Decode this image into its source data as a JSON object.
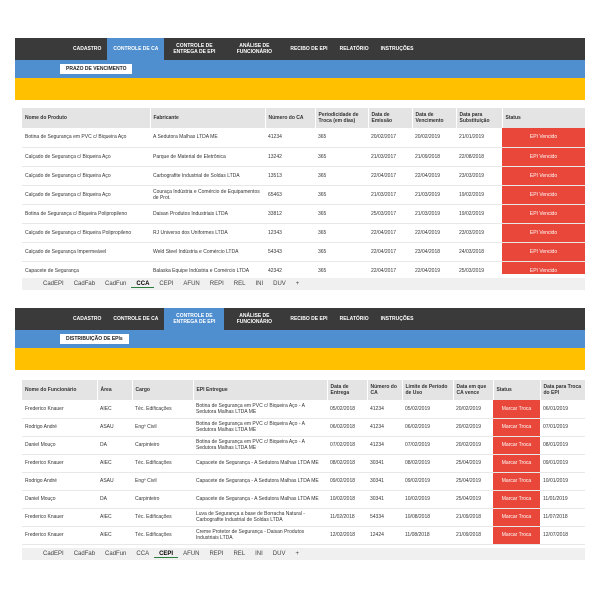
{
  "panels": [
    {
      "nav": [
        "CADASTRO",
        "CONTROLE DE CA",
        "CONTROLE DE ENTREGA DE EPI",
        "ANÁLISE DE FUNCIONÁRIO",
        "RECIBO DE EPI",
        "RELATÓRIO",
        "INSTRUÇÕES"
      ],
      "active_nav": 1,
      "button": "PRAZO DE VENCIMENTO",
      "table": {
        "headers": [
          "Nome do Produto",
          "Fabricante",
          "Número do CA",
          "Periodicidade de Troca (em dias)",
          "Data de Emissão",
          "Data de Vencimento",
          "Data para Substituição",
          "Status"
        ],
        "rows": [
          [
            "Botina de Segurança em PVC c/ Biqueira Aço",
            "A Sedutora Malhas LTDA ME",
            "41234",
            "365",
            "20/02/2017",
            "20/02/2019",
            "21/01/2019",
            "EPI Vencido"
          ],
          [
            "Calçado de Segurança c/ Biqueira Aço",
            "Parque de Material de Eletrônica",
            "13242",
            "365",
            "21/03/2017",
            "21/09/2018",
            "22/08/2018",
            "EPI Vencido"
          ],
          [
            "Calçado de Segurança c/ Biqueira Aço",
            "Carbografite Industrial de Soldas LTDA",
            "13513",
            "365",
            "22/04/2017",
            "22/04/2019",
            "23/03/2019",
            "EPI Vencido"
          ],
          [
            "Calçado de Segurança c/ Biqueira Aço",
            "Couraça Indústria e Comércio de Equipamentos de Prot.",
            "65463",
            "365",
            "21/03/2017",
            "21/03/2019",
            "19/02/2019",
            "EPI Vencido"
          ],
          [
            "Botina de Segurança c/ Biqueira Polipropileno",
            "Daisan Produtos Industriais LTDA",
            "33812",
            "365",
            "25/03/2017",
            "21/03/2019",
            "19/02/2019",
            "EPI Vencido"
          ],
          [
            "Calçado de Segurança c/ Biqueira Polipropileno",
            "RJ Universo dos Uniformes LTDA",
            "12343",
            "365",
            "22/04/2017",
            "22/04/2019",
            "23/03/2019",
            "EPI Vencido"
          ],
          [
            "Calçado de Segurança Impermeável",
            "Weld Steel Indústria e Comércio LTDA",
            "54343",
            "365",
            "22/04/2017",
            "23/04/2018",
            "24/03/2018",
            "EPI Vencido"
          ],
          [
            "Capacete de Segurança",
            "Balaska Equipe Indústria e Comércio LTDA",
            "42342",
            "365",
            "22/04/2017",
            "22/04/2019",
            "25/03/2019",
            "EPI Vencido"
          ]
        ]
      },
      "tabs": [
        "CadEPI",
        "CadFab",
        "CadFun",
        "CCA",
        "CEPI",
        "AFUN",
        "REPI",
        "REL",
        "INI",
        "DUV",
        "+"
      ],
      "active_tab": 3
    },
    {
      "nav": [
        "CADASTRO",
        "CONTROLE DE CA",
        "CONTROLE DE ENTREGA DE EPI",
        "ANÁLISE DE FUNCIONÁRIO",
        "RECIBO DE EPI",
        "RELATÓRIO",
        "INSTRUÇÕES"
      ],
      "active_nav": 2,
      "button": "DISTRIBUIÇÃO DE EPIs",
      "table": {
        "headers": [
          "Nome do Funcionário",
          "Área",
          "Cargo",
          "EPI Entregue",
          "Data de Entrega",
          "Número do CA",
          "Limite de Período de Uso",
          "Data em que CA vence",
          "Status",
          "Data para Troca do EPI"
        ],
        "rows": [
          [
            "Frederico Knauer",
            "AIEC",
            "Téc. Edificações",
            "Botina de Segurança em PVC c/ Biqueira Aço - A Sedutora Malhas LTDA ME",
            "05/02/2018",
            "41234",
            "05/02/2019",
            "20/02/2019",
            "Marcar Troca",
            "06/01/2019"
          ],
          [
            "Rodrigo André",
            "ASAU",
            "Engº Civil",
            "Botina de Segurança em PVC c/ Biqueira Aço - A Sedutora Malhas LTDA ME",
            "06/02/2018",
            "41234",
            "06/02/2019",
            "20/02/2019",
            "Marcar Troca",
            "07/01/2019"
          ],
          [
            "Daniel Mouço",
            "DA",
            "Carpinteiro",
            "Botina de Segurança em PVC c/ Biqueira Aço - A Sedutora Malhas LTDA ME",
            "07/02/2018",
            "41234",
            "07/02/2019",
            "20/02/2019",
            "Marcar Troca",
            "08/01/2019"
          ],
          [
            "Frederico Knauer",
            "AIEC",
            "Téc. Edificações",
            "Capacete de Segurança - A Sedutora Malhas LTDA ME",
            "08/02/2018",
            "30341",
            "08/02/2019",
            "25/04/2019",
            "Marcar Troca",
            "09/01/2019"
          ],
          [
            "Rodrigo André",
            "ASAU",
            "Engº Civil",
            "Capacete de Segurança - A Sedutora Malhas LTDA ME",
            "09/02/2018",
            "30341",
            "09/02/2019",
            "25/04/2019",
            "Marcar Troca",
            "10/01/2019"
          ],
          [
            "Daniel Mouço",
            "DA",
            "Carpinteiro",
            "Capacete de Segurança - A Sedutora Malhas LTDA ME",
            "10/02/2018",
            "30341",
            "10/02/2019",
            "25/04/2019",
            "Marcar Troca",
            "11/01/2019"
          ],
          [
            "Frederico Knauer",
            "AIEC",
            "Téc. Edificações",
            "Luva de Segurança a base de Borracha Natural - Carbografite Industrial de Soldas LTDA",
            "11/02/2018",
            "54334",
            "10/08/2018",
            "21/09/2018",
            "Marcar Troca",
            "11/07/2018"
          ],
          [
            "Frederico Knauer",
            "AIEC",
            "Téc. Edificações",
            "Creme Protetor de Segurança - Daisan Produtos Industriais LTDA",
            "12/02/2018",
            "12424",
            "11/08/2018",
            "21/09/2018",
            "Marcar Troca",
            "12/07/2018"
          ]
        ]
      },
      "tabs": [
        "CadEPI",
        "CadFab",
        "CadFun",
        "CCA",
        "CEPI",
        "AFUN",
        "REPI",
        "REL",
        "INI",
        "DUV",
        "+"
      ],
      "active_tab": 4
    }
  ]
}
